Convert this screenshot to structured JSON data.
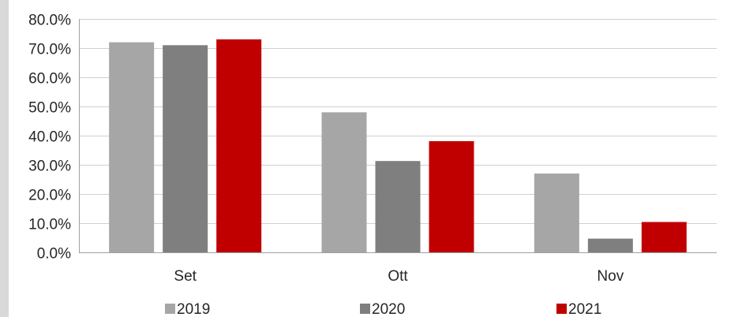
{
  "chart_data": {
    "type": "bar",
    "categories": [
      "Set",
      "Ott",
      "Nov"
    ],
    "series": [
      {
        "name": "2019",
        "color": "#a6a6a6",
        "values": [
          72.0,
          48.0,
          27.0
        ]
      },
      {
        "name": "2020",
        "color": "#7f7f7f",
        "values": [
          71.0,
          31.3,
          4.7
        ]
      },
      {
        "name": "2021",
        "color": "#c00000",
        "values": [
          73.0,
          38.1,
          10.4
        ]
      }
    ],
    "ylim": [
      0,
      80
    ],
    "yticks": [
      {
        "value": 0,
        "label": "0.0%"
      },
      {
        "value": 10,
        "label": "10.0%"
      },
      {
        "value": 20,
        "label": "20.0%"
      },
      {
        "value": 30,
        "label": "30.0%"
      },
      {
        "value": 40,
        "label": "40.0%"
      },
      {
        "value": 50,
        "label": "50.0%"
      },
      {
        "value": 60,
        "label": "60.0%"
      },
      {
        "value": 70,
        "label": "70.0%"
      },
      {
        "value": 80,
        "label": "80.0%"
      }
    ],
    "grid": true,
    "legend": "bottom",
    "gridline_color": "#d0d0d0",
    "axis_color": "#a0a0a0"
  }
}
